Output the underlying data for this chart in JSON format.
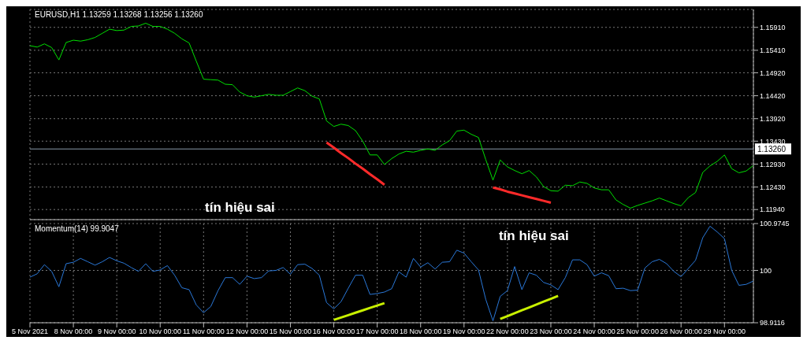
{
  "chart_data": [
    {
      "type": "line",
      "title": "EURUSD,H1 1.13259 1.13268 1.13256 1.13260",
      "tick_labels": "y",
      "grid": true,
      "categories": [
        null,
        null,
        null,
        null,
        null,
        null,
        null,
        null,
        null,
        null,
        null,
        null,
        null,
        null,
        null,
        null,
        null,
        null,
        null,
        null,
        null,
        null,
        null,
        null,
        null,
        null,
        null,
        null,
        null,
        null,
        null,
        null,
        null,
        null,
        null,
        null,
        null,
        null,
        null,
        null,
        null,
        null,
        null,
        null,
        null,
        null,
        null,
        null,
        null,
        null,
        null,
        null,
        null,
        null,
        null,
        null,
        null,
        null,
        null,
        null,
        null,
        null,
        null,
        null,
        null,
        null,
        null,
        null,
        null,
        null,
        null,
        null,
        null,
        null,
        null,
        null,
        null,
        null,
        null,
        null,
        null,
        null,
        null,
        null,
        null,
        null,
        null,
        null,
        null,
        null,
        null,
        null,
        null,
        null,
        null,
        null,
        null,
        null,
        null,
        null,
        null
      ],
      "series": [
        {
          "color": "#00e000",
          "values": [
            1.1551,
            1.1548,
            1.1555,
            1.1547,
            1.152,
            1.1558,
            1.1563,
            1.1561,
            1.1564,
            1.1569,
            1.1578,
            1.1587,
            1.1584,
            1.1585,
            1.1593,
            1.1594,
            1.16,
            1.1593,
            1.1593,
            1.1587,
            1.1578,
            1.1566,
            1.1557,
            1.1517,
            1.1478,
            1.1477,
            1.1476,
            1.1467,
            1.1466,
            1.145,
            1.1442,
            1.1439,
            1.1442,
            1.1445,
            1.1443,
            1.1443,
            1.1451,
            1.1459,
            1.1453,
            1.1441,
            1.1435,
            1.1387,
            1.1375,
            1.138,
            1.1377,
            1.1366,
            1.1343,
            1.1313,
            1.1313,
            1.1292,
            1.1305,
            1.1315,
            1.1321,
            1.1319,
            1.1323,
            1.1326,
            1.1323,
            1.1335,
            1.1344,
            1.1365,
            1.1367,
            1.1358,
            1.1351,
            1.1303,
            1.1258,
            1.1302,
            1.1287,
            1.1279,
            1.1272,
            1.1279,
            1.1265,
            1.1244,
            1.1235,
            1.1234,
            1.1247,
            1.1246,
            1.1254,
            1.1251,
            1.1241,
            1.1237,
            1.1237,
            1.1215,
            1.1205,
            1.1197,
            1.1203,
            1.1208,
            1.1213,
            1.1219,
            1.1213,
            1.1207,
            1.1202,
            1.122,
            1.1231,
            1.1275,
            1.1289,
            1.1299,
            1.1313,
            1.1283,
            1.1274,
            1.1278,
            1.129
          ]
        },
        {
          "type": "line",
          "color": "#ff2a2a",
          "values": [
            null,
            null,
            null,
            null,
            null,
            null,
            null,
            null,
            null,
            null,
            null,
            null,
            null,
            null,
            null,
            null,
            null,
            null,
            null,
            null,
            null,
            null,
            null,
            null,
            null,
            null,
            null,
            null,
            null,
            null,
            null,
            null,
            null,
            null,
            null,
            null,
            null,
            null,
            null,
            null,
            null,
            1.134,
            1.1329,
            1.1317,
            1.1306,
            1.1294,
            1.1283,
            1.1271,
            1.126,
            1.1248,
            null,
            null,
            null,
            null,
            null,
            null,
            null,
            null,
            null,
            null,
            null,
            null,
            null,
            null,
            null,
            null,
            null,
            null,
            null,
            null,
            null,
            null,
            null,
            null,
            null,
            null,
            null,
            null,
            null,
            null,
            null,
            null,
            null,
            null,
            null,
            null,
            null,
            null,
            null,
            null,
            null,
            null,
            null,
            null,
            null,
            null,
            null,
            null,
            null,
            null,
            null
          ]
        },
        {
          "type": "line",
          "color": "#ff2a2a",
          "values": [
            null,
            null,
            null,
            null,
            null,
            null,
            null,
            null,
            null,
            null,
            null,
            null,
            null,
            null,
            null,
            null,
            null,
            null,
            null,
            null,
            null,
            null,
            null,
            null,
            null,
            null,
            null,
            null,
            null,
            null,
            null,
            null,
            null,
            null,
            null,
            null,
            null,
            null,
            null,
            null,
            null,
            null,
            null,
            null,
            null,
            null,
            null,
            null,
            null,
            null,
            null,
            null,
            null,
            null,
            null,
            null,
            null,
            null,
            null,
            null,
            null,
            null,
            null,
            null,
            1.1242,
            1.1238,
            1.1233,
            1.1229,
            1.1225,
            1.1221,
            1.1217,
            1.1213,
            1.1209,
            null,
            null,
            null,
            null,
            null,
            null,
            null,
            null,
            null,
            null,
            null,
            null,
            null,
            null,
            null,
            null,
            null,
            null,
            null,
            null,
            null,
            null,
            null,
            null,
            null,
            null,
            null,
            null
          ]
        }
      ],
      "ylim": [
        1.1172,
        1.163
      ],
      "yticks": [
        {
          "value": 1.1194,
          "label": "1.11940"
        },
        {
          "value": 1.1243,
          "label": "1.12430"
        },
        {
          "value": 1.1293,
          "label": "1.12930"
        },
        {
          "value": 1.1343,
          "label": "1.13430"
        },
        {
          "value": 1.1392,
          "label": "1.13920"
        },
        {
          "value": 1.1442,
          "label": "1.14420"
        },
        {
          "value": 1.1492,
          "label": "1.14920"
        },
        {
          "value": 1.1541,
          "label": "1.15410"
        },
        {
          "value": 1.1591,
          "label": "1.15910"
        }
      ],
      "ref_lines": [
        {
          "axis": "y",
          "value": 1.1326,
          "label": "1.13260",
          "color": "#8899aa"
        }
      ],
      "annotations": [
        "tín hiệu sai"
      ]
    },
    {
      "type": "line",
      "title": "Momentum(14) 99.9047",
      "grid": true,
      "categories": [
        "5 Nov 2021",
        null,
        null,
        null,
        null,
        null,
        "8 Nov 00:00",
        null,
        null,
        null,
        null,
        null,
        "9 Nov 00:00",
        null,
        null,
        null,
        null,
        null,
        "10 Nov 00:00",
        null,
        null,
        null,
        null,
        null,
        "11 Nov 00:00",
        null,
        null,
        null,
        null,
        null,
        "12 Nov 00:00",
        null,
        null,
        null,
        null,
        null,
        "15 Nov 00:00",
        null,
        null,
        null,
        null,
        null,
        "16 Nov 00:00",
        null,
        null,
        null,
        null,
        null,
        "17 Nov 00:00",
        null,
        null,
        null,
        null,
        null,
        "18 Nov 00:00",
        null,
        null,
        null,
        null,
        null,
        "19 Nov 00:00",
        null,
        null,
        null,
        null,
        null,
        "22 Nov 00:00",
        null,
        null,
        null,
        null,
        null,
        "23 Nov 00:00",
        null,
        null,
        null,
        null,
        null,
        "24 Nov 00:00",
        null,
        null,
        null,
        null,
        null,
        "25 Nov 00:00",
        null,
        null,
        null,
        null,
        null,
        "26 Nov 00:00",
        null,
        null,
        null,
        null,
        null,
        "29 Nov 00:00",
        null,
        null,
        null,
        null
      ],
      "series": [
        {
          "color": "#2a78d8",
          "values": [
            99.86,
            99.93,
            100.12,
            99.98,
            99.66,
            100.14,
            100.17,
            100.25,
            100.18,
            100.11,
            100.18,
            100.27,
            100.2,
            100.15,
            100.06,
            99.98,
            100.14,
            99.98,
            100.01,
            100.1,
            99.9,
            99.64,
            99.6,
            99.28,
            99.12,
            99.25,
            99.58,
            99.85,
            99.85,
            99.71,
            99.88,
            99.83,
            99.85,
            99.99,
            100,
            100.06,
            99.92,
            100.12,
            100.13,
            100.04,
            99.9,
            99.33,
            99.2,
            99.35,
            99.63,
            99.9,
            99.9,
            99.5,
            99.52,
            99.55,
            99.62,
            99.97,
            99.86,
            100.25,
            100.07,
            100.16,
            100.03,
            100.17,
            100.18,
            100.42,
            100.36,
            100.18,
            100.01,
            99.4,
            98.95,
            99.46,
            99.58,
            100.08,
            99.6,
            99.95,
            99.9,
            99.75,
            99.7,
            99.6,
            99.85,
            100.22,
            100.22,
            100.12,
            99.88,
            99.95,
            99.89,
            99.62,
            99.63,
            99.58,
            99.59,
            100.05,
            100.18,
            100.23,
            100.14,
            99.98,
            99.87,
            100.04,
            100.21,
            100.68,
            100.92,
            100.8,
            100.66,
            100,
            99.69,
            99.71,
            99.78
          ]
        },
        {
          "type": "line",
          "color": "#c8f000",
          "values": [
            null,
            null,
            null,
            null,
            null,
            null,
            null,
            null,
            null,
            null,
            null,
            null,
            null,
            null,
            null,
            null,
            null,
            null,
            null,
            null,
            null,
            null,
            null,
            null,
            null,
            null,
            null,
            null,
            null,
            null,
            null,
            null,
            null,
            null,
            null,
            null,
            null,
            null,
            null,
            null,
            null,
            null,
            98.97,
            99.02,
            99.07,
            99.12,
            99.17,
            99.22,
            99.27,
            99.32,
            null,
            null,
            null,
            null,
            null,
            null,
            null,
            null,
            null,
            null,
            null,
            null,
            null,
            null,
            null,
            null,
            null,
            null,
            null,
            null,
            null,
            null,
            null,
            null,
            null,
            null,
            null,
            null,
            null,
            null,
            null,
            null,
            null,
            null,
            null,
            null,
            null,
            null,
            null,
            null,
            null,
            null,
            null,
            null,
            null,
            null,
            null,
            null,
            null,
            null,
            null
          ]
        },
        {
          "type": "line",
          "color": "#c8f000",
          "values": [
            null,
            null,
            null,
            null,
            null,
            null,
            null,
            null,
            null,
            null,
            null,
            null,
            null,
            null,
            null,
            null,
            null,
            null,
            null,
            null,
            null,
            null,
            null,
            null,
            null,
            null,
            null,
            null,
            null,
            null,
            null,
            null,
            null,
            null,
            null,
            null,
            null,
            null,
            null,
            null,
            null,
            null,
            null,
            null,
            null,
            null,
            null,
            null,
            null,
            null,
            null,
            null,
            null,
            null,
            null,
            null,
            null,
            null,
            null,
            null,
            null,
            null,
            null,
            null,
            null,
            98.99,
            99.05,
            99.11,
            99.17,
            99.23,
            99.29,
            99.35,
            99.41,
            99.47,
            null,
            null,
            null,
            null,
            null,
            null,
            null,
            null,
            null,
            null,
            null,
            null,
            null,
            null,
            null,
            null,
            null,
            null,
            null,
            null,
            null,
            null,
            null,
            null,
            null,
            null,
            null
          ]
        }
      ],
      "ylim": [
        98.9116,
        100.9745
      ],
      "yticks": [
        98.9116,
        100,
        100.9745
      ],
      "annotations": [
        "tín hiệu sai"
      ]
    }
  ]
}
